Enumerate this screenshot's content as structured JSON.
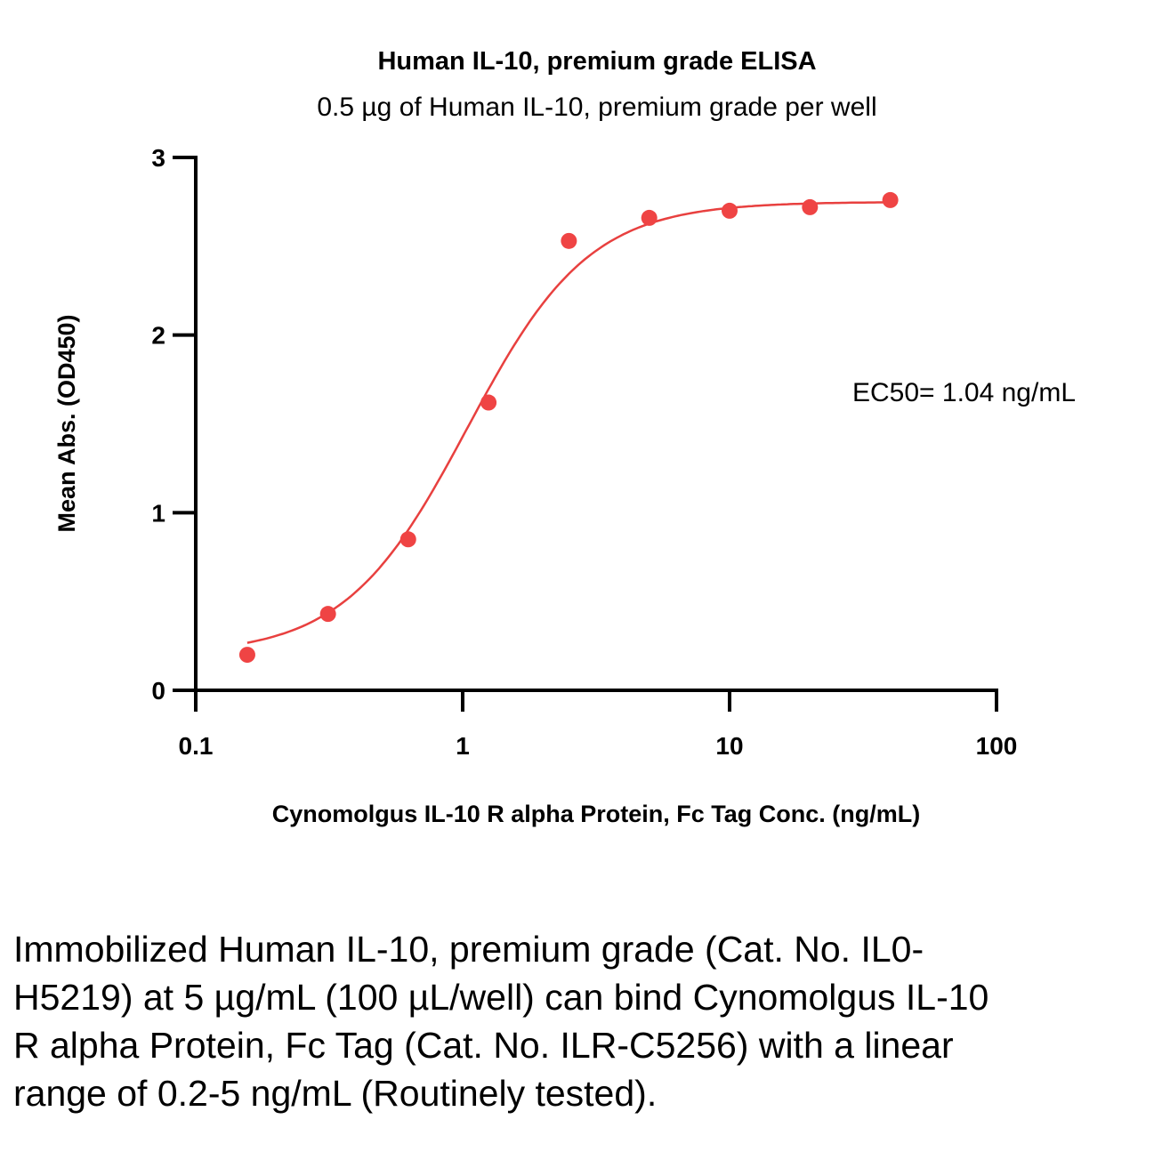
{
  "chart_data": {
    "type": "scatter",
    "title": "Human IL-10, premium grade ELISA",
    "subtitle": "0.5 µg of Human IL-10, premium grade per well",
    "xlabel": "Cynomolgus IL-10 R alpha Protein, Fc Tag Conc. (ng/mL)",
    "ylabel": "Mean Abs. (OD450)",
    "xscale": "log",
    "xlim": [
      0.1,
      100
    ],
    "ylim": [
      0,
      3
    ],
    "xticks": [
      "0.1",
      "1",
      "10",
      "100"
    ],
    "yticks": [
      "0",
      "1",
      "2",
      "3"
    ],
    "grid": false,
    "series": [
      {
        "name": "data",
        "color": "#ef4444",
        "x": [
          0.156,
          0.313,
          0.625,
          1.25,
          2.5,
          5,
          10,
          20,
          40
        ],
        "y": [
          0.2,
          0.43,
          0.85,
          1.62,
          2.53,
          2.66,
          2.7,
          2.72,
          2.76
        ]
      }
    ],
    "fit": {
      "type": "4PL",
      "bottom": 0.2,
      "top": 2.75,
      "ec50": 1.04,
      "hill": 1.9,
      "color": "#e8403f"
    },
    "annotation": "EC50= 1.04 ng/mL"
  },
  "caption": "Immobilized Human IL-10, premium grade (Cat. No. IL0-H5219) at 5 µg/mL (100 µL/well) can bind Cynomolgus IL-10 R alpha Protein, Fc Tag (Cat. No. ILR-C5256) with a linear range of 0.2-5 ng/mL (Routinely tested)."
}
